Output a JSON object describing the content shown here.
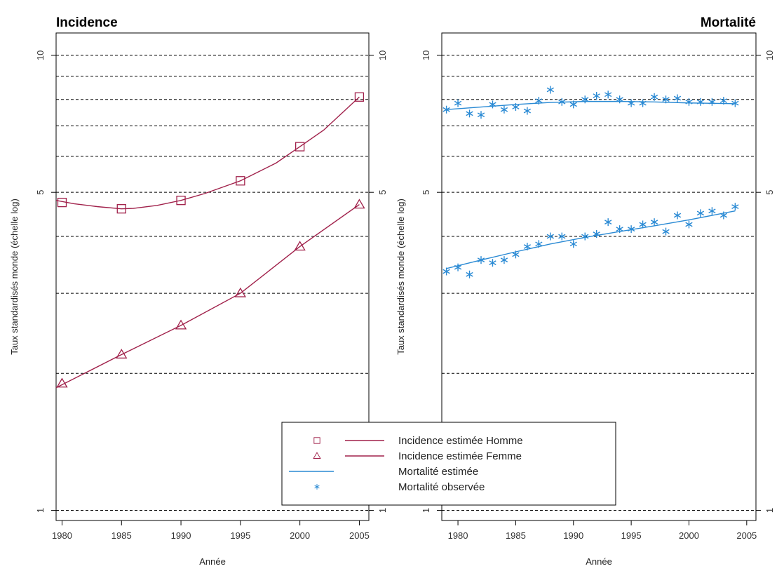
{
  "colors": {
    "incidence": "#a0204a",
    "mortality": "#2a8ad4",
    "grid": "#000000",
    "frame": "#000000"
  },
  "chart_data": [
    {
      "type": "line",
      "title": "Incidence",
      "xlabel": "Année",
      "ylabel": "Taux standardisés monde (échelle log)",
      "y_scale": "log",
      "xlim": [
        1979.5,
        2005.8
      ],
      "ylim": [
        0.95,
        11.2
      ],
      "x_ticks": [
        1980,
        1985,
        1990,
        1995,
        2000,
        2005
      ],
      "y_ticks": [
        1,
        5,
        10
      ],
      "y_gridlines": [
        1,
        2,
        3,
        4,
        5,
        6,
        7,
        8,
        9,
        10
      ],
      "series": [
        {
          "name": "Incidence estimée Homme",
          "marker": "square",
          "x": [
            1980,
            1985,
            1990,
            1995,
            2000,
            2005
          ],
          "y": [
            4.75,
            4.6,
            4.8,
            5.3,
            6.3,
            8.1
          ],
          "curve_x": [
            1979.5,
            1981,
            1983,
            1985,
            1986,
            1988,
            1990,
            1992,
            1995,
            1998,
            2000,
            2002,
            2005
          ],
          "curve_y": [
            4.8,
            4.72,
            4.65,
            4.6,
            4.61,
            4.68,
            4.8,
            4.97,
            5.3,
            5.8,
            6.3,
            6.85,
            8.1
          ]
        },
        {
          "name": "Incidence estimée Femme",
          "marker": "triangle",
          "x": [
            1980,
            1985,
            1990,
            1995,
            2000,
            2005
          ],
          "y": [
            1.9,
            2.2,
            2.55,
            3.0,
            3.8,
            4.7
          ],
          "curve_x": [
            1979.5,
            1985,
            1990,
            1995,
            2000,
            2005
          ],
          "curve_y": [
            1.86,
            2.2,
            2.55,
            3.0,
            3.8,
            4.7
          ]
        }
      ]
    },
    {
      "type": "line",
      "title": "Mortalité",
      "xlabel": "Année",
      "ylabel": "Taux standardisés monde (échelle log)",
      "y_scale": "log",
      "xlim": [
        1978.6,
        2005.8
      ],
      "ylim": [
        0.95,
        11.2
      ],
      "x_ticks": [
        1980,
        1985,
        1990,
        1995,
        2000,
        2005
      ],
      "y_ticks": [
        1,
        5,
        10
      ],
      "y_gridlines": [
        1,
        2,
        3,
        4,
        5,
        6,
        7,
        8,
        9,
        10
      ],
      "series": [
        {
          "name": "Mortalité estimée",
          "marker": "none",
          "x": [
            1979,
            1982,
            1985,
            1988,
            1991,
            1994,
            1997,
            2000,
            2004
          ],
          "y": [
            7.6,
            7.7,
            7.8,
            7.88,
            7.92,
            7.92,
            7.9,
            7.86,
            7.83
          ],
          "lower_x": [
            1979,
            1982,
            1985,
            1988,
            1991,
            1994,
            1997,
            2000,
            2004
          ],
          "lower_y": [
            3.4,
            3.55,
            3.7,
            3.85,
            3.98,
            4.1,
            4.22,
            4.35,
            4.55
          ]
        },
        {
          "name": "Mortalité observée",
          "marker": "asterisk",
          "upper_x": [
            1979,
            1980,
            1981,
            1982,
            1983,
            1984,
            1985,
            1986,
            1987,
            1988,
            1989,
            1990,
            1991,
            1992,
            1993,
            1994,
            1995,
            1996,
            1997,
            1998,
            1999,
            2000,
            2001,
            2002,
            2003,
            2004
          ],
          "upper_y": [
            7.6,
            7.85,
            7.45,
            7.4,
            7.8,
            7.6,
            7.7,
            7.55,
            7.95,
            8.4,
            7.9,
            7.8,
            8.0,
            8.15,
            8.2,
            8.0,
            7.85,
            7.85,
            8.1,
            8.0,
            8.05,
            7.9,
            7.9,
            7.9,
            7.95,
            7.85
          ],
          "lower_x": [
            1979,
            1980,
            1981,
            1982,
            1983,
            1984,
            1985,
            1986,
            1987,
            1988,
            1989,
            1990,
            1991,
            1992,
            1993,
            1994,
            1995,
            1996,
            1997,
            1998,
            1999,
            2000,
            2001,
            2002,
            2003,
            2004
          ],
          "lower_y": [
            3.35,
            3.42,
            3.3,
            3.55,
            3.5,
            3.55,
            3.65,
            3.8,
            3.85,
            4.0,
            4.0,
            3.85,
            4.0,
            4.05,
            4.3,
            4.15,
            4.15,
            4.25,
            4.3,
            4.1,
            4.45,
            4.25,
            4.5,
            4.55,
            4.45,
            4.65
          ]
        }
      ]
    }
  ],
  "legend": {
    "items": [
      {
        "label": "Incidence estimée Homme",
        "marker": "square",
        "line": "incidence"
      },
      {
        "label": "Incidence estimée Femme",
        "marker": "triangle",
        "line": "incidence"
      },
      {
        "label": "Mortalité estimée",
        "marker": "none",
        "line": "mortality"
      },
      {
        "label": "Mortalité observée",
        "marker": "asterisk",
        "line": "none"
      }
    ]
  }
}
